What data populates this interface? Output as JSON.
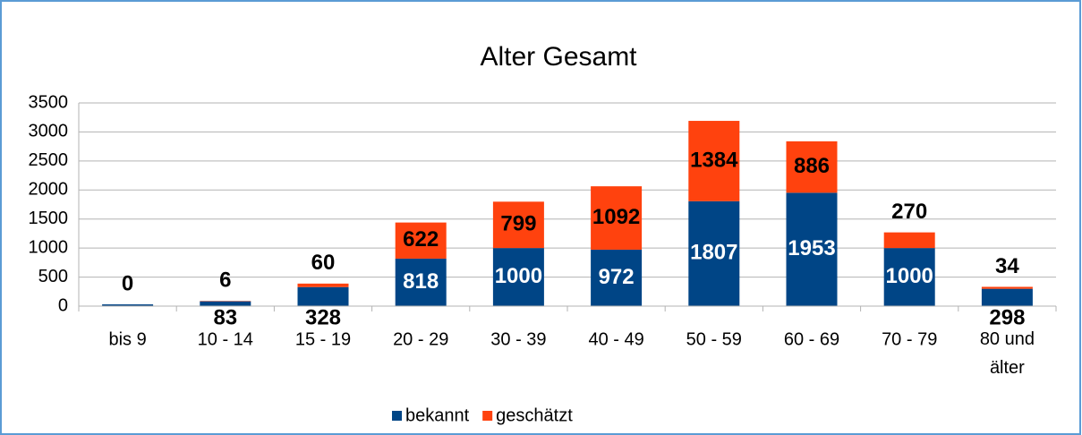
{
  "chart_data": {
    "type": "stacked-bar",
    "title": "Alter Gesamt",
    "categories": [
      "bis 9",
      "10 - 14",
      "15 - 19",
      "20 - 29",
      "30 - 39",
      "40 - 49",
      "50 - 59",
      "60 - 69",
      "70 - 79",
      "80 und älter"
    ],
    "series": [
      {
        "name": "bekannt",
        "color": "#004586",
        "values": [
          30,
          83,
          328,
          818,
          1000,
          972,
          1807,
          1953,
          1000,
          298
        ],
        "value_labels": [
          null,
          "83",
          "328",
          "818",
          "1000",
          "972",
          "1807",
          "1953",
          "1000",
          "298"
        ]
      },
      {
        "name": "geschätzt",
        "color": "#ff420e",
        "values": [
          0,
          6,
          60,
          622,
          799,
          1092,
          1384,
          886,
          270,
          34
        ]
      }
    ],
    "ylim": [
      0,
      3500
    ],
    "yticks": [
      0,
      500,
      1000,
      1500,
      2000,
      2500,
      3000,
      3500
    ],
    "grid": true,
    "legend": "bottom"
  }
}
